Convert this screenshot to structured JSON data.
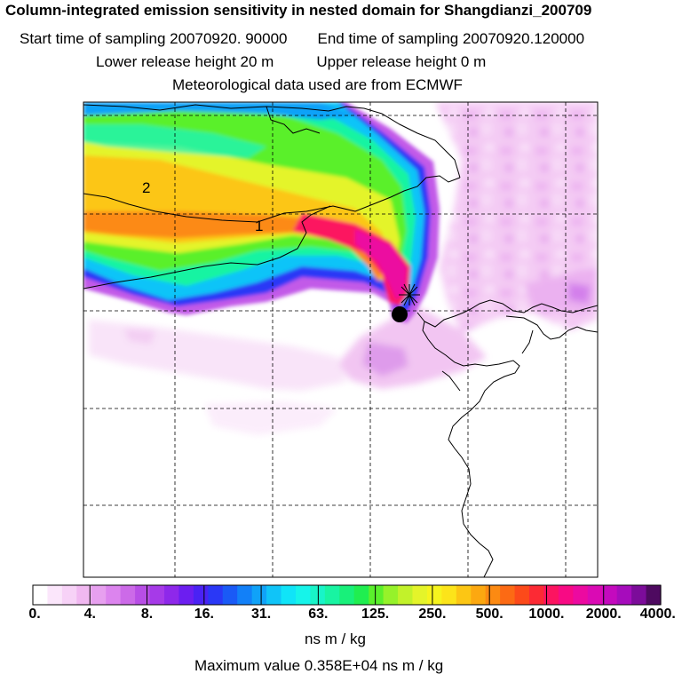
{
  "header": {
    "title": "Column-integrated emission sensitivity in nested domain for Shangdianzi_200709",
    "start_label": "Start time of sampling 20070920. 90000",
    "end_label": "End time of sampling 20070920.120000",
    "lower_height": "Lower release height   20 m",
    "upper_height": "Upper release height    0 m",
    "met_source": "Meteorological data used are from ECMWF"
  },
  "map": {
    "plume_labels": [
      "2",
      "1"
    ],
    "release_marker": "release-point-star",
    "station_marker": "station-dot"
  },
  "colorbar": {
    "ticks": [
      "0.",
      "4.",
      "8.",
      "16.",
      "31.",
      "63.",
      "125.",
      "250.",
      "500.",
      "1000.",
      "2000.",
      "4000."
    ],
    "colors": [
      "#ffffff",
      "#fbe6fb",
      "#f7d2f7",
      "#f1b8f1",
      "#e7a0ef",
      "#dc84ee",
      "#cc6ae8",
      "#b84ee6",
      "#a63ae8",
      "#8e28ea",
      "#6c1ef0",
      "#4a22f4",
      "#2a38f6",
      "#1a5af6",
      "#1280f8",
      "#10a2f8",
      "#10c4f8",
      "#10e4f8",
      "#16f4ea",
      "#18f4c8",
      "#18f4a2",
      "#18f07a",
      "#20ee50",
      "#5af02c",
      "#96f22a",
      "#c2f22a",
      "#e4f42a",
      "#f6f41e",
      "#fce41a",
      "#fcc614",
      "#fca810",
      "#fc8a12",
      "#fc6a14",
      "#fc4a1a",
      "#fc2a34",
      "#fc1460",
      "#f80a84",
      "#ec0aa0",
      "#da0ab4",
      "#c40abe",
      "#a60cbc",
      "#7c0c9a",
      "#4e0a60"
    ],
    "units": "ns m / kg",
    "max_value": "Maximum value  0.358E+04 ns m / kg"
  }
}
